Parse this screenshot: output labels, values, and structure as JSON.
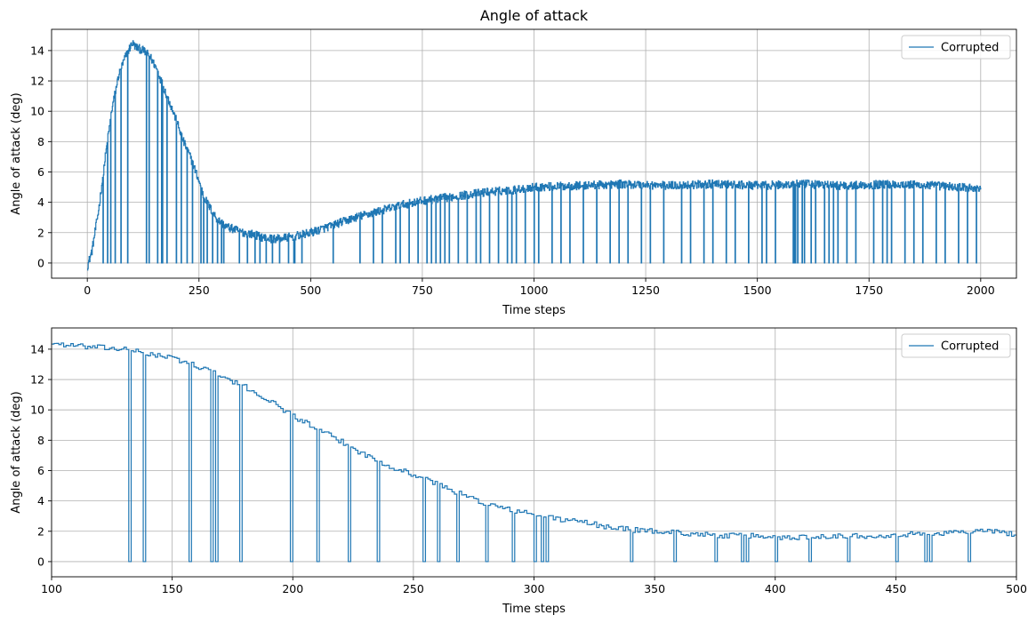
{
  "chart_data": [
    {
      "type": "line",
      "title": "Angle of attack",
      "xlabel": "Time steps",
      "ylabel": "Angle of attack (deg)",
      "xlim": [
        -80,
        2080
      ],
      "ylim": [
        -1.0,
        15.4
      ],
      "xticks": [
        0,
        250,
        500,
        750,
        1000,
        1250,
        1500,
        1750,
        2000
      ],
      "xtick_labels": [
        "0",
        "250",
        "500",
        "750",
        "1000",
        "1250",
        "1500",
        "1750",
        "2000"
      ],
      "yticks": [
        0,
        2,
        4,
        6,
        8,
        10,
        12,
        14
      ],
      "ytick_labels": [
        "0",
        "2",
        "4",
        "6",
        "8",
        "10",
        "12",
        "14"
      ],
      "grid": true,
      "legend": {
        "position": "top-right",
        "entries": [
          "Corrupted"
        ]
      },
      "line_color": "#1f77b4",
      "series": [
        {
          "name": "Corrupted",
          "x": [
            0,
            10,
            25,
            40,
            55,
            70,
            85,
            95,
            100,
            110,
            125,
            140,
            155,
            170,
            185,
            200,
            215,
            230,
            245,
            260,
            275,
            290,
            310,
            330,
            350,
            370,
            390,
            410,
            430,
            450,
            470,
            500,
            530,
            560,
            600,
            650,
            700,
            750,
            800,
            850,
            900,
            950,
            1000,
            1100,
            1200,
            1300,
            1400,
            1500,
            1600,
            1700,
            1800,
            1900,
            2000
          ],
          "y": [
            -0.2,
            0.8,
            3.5,
            7.0,
            10.2,
            12.4,
            13.6,
            14.2,
            14.5,
            14.2,
            14.0,
            13.6,
            12.8,
            11.6,
            10.5,
            9.3,
            8.0,
            7.0,
            5.8,
            4.4,
            3.6,
            2.9,
            2.4,
            2.2,
            2.0,
            1.9,
            1.7,
            1.6,
            1.6,
            1.7,
            1.8,
            2.0,
            2.3,
            2.6,
            3.0,
            3.4,
            3.8,
            4.1,
            4.3,
            4.5,
            4.7,
            4.8,
            5.0,
            5.1,
            5.2,
            5.1,
            5.2,
            5.1,
            5.2,
            5.1,
            5.2,
            5.1,
            4.9
          ],
          "dropouts_to_zero": [
            35,
            45,
            52,
            62,
            75,
            90,
            132,
            138,
            157,
            166,
            168,
            178,
            199,
            210,
            223,
            235,
            254,
            260,
            268,
            280,
            291,
            300,
            305,
            340,
            358,
            375,
            386,
            400,
            414,
            430,
            450,
            462,
            464,
            480,
            550,
            610,
            640,
            660,
            690,
            700,
            720,
            740,
            760,
            770,
            780,
            790,
            800,
            810,
            830,
            850,
            870,
            880,
            900,
            920,
            940,
            950,
            960,
            980,
            1000,
            1010,
            1040,
            1060,
            1080,
            1110,
            1140,
            1170,
            1190,
            1210,
            1240,
            1260,
            1290,
            1330,
            1350,
            1380,
            1400,
            1430,
            1450,
            1480,
            1510,
            1520,
            1540,
            1580,
            1582,
            1585,
            1590,
            1600,
            1605,
            1620,
            1630,
            1650,
            1660,
            1670,
            1680,
            1700,
            1720,
            1760,
            1780,
            1790,
            1800,
            1830,
            1850,
            1870,
            1900,
            1920,
            1950,
            1970,
            1990
          ]
        }
      ]
    },
    {
      "type": "line",
      "title": "",
      "xlabel": "Time steps",
      "ylabel": "Angle of attack (deg)",
      "xlim": [
        100,
        500
      ],
      "ylim": [
        -1.0,
        15.4
      ],
      "xticks": [
        100,
        150,
        200,
        250,
        300,
        350,
        400,
        450,
        500
      ],
      "xtick_labels": [
        "100",
        "150",
        "200",
        "250",
        "300",
        "350",
        "400",
        "450",
        "500"
      ],
      "yticks": [
        0,
        2,
        4,
        6,
        8,
        10,
        12,
        14
      ],
      "ytick_labels": [
        "0",
        "2",
        "4",
        "6",
        "8",
        "10",
        "12",
        "14"
      ],
      "grid": true,
      "legend": {
        "position": "top-right",
        "entries": [
          "Corrupted"
        ]
      },
      "line_color": "#1f77b4",
      "series": [
        {
          "name": "Corrupted",
          "x": [
            100,
            110,
            120,
            130,
            140,
            150,
            160,
            170,
            180,
            190,
            200,
            210,
            220,
            230,
            240,
            250,
            260,
            270,
            280,
            290,
            300,
            310,
            320,
            330,
            340,
            350,
            360,
            370,
            380,
            390,
            400,
            410,
            420,
            430,
            440,
            450,
            460,
            470,
            480,
            490,
            500
          ],
          "y": [
            14.4,
            14.2,
            14.1,
            14.0,
            13.7,
            13.4,
            12.9,
            12.2,
            11.5,
            10.6,
            9.6,
            8.7,
            7.9,
            7.0,
            6.3,
            5.7,
            5.1,
            4.4,
            3.8,
            3.4,
            3.1,
            2.8,
            2.6,
            2.3,
            2.1,
            2.0,
            1.9,
            1.8,
            1.7,
            1.7,
            1.6,
            1.6,
            1.7,
            1.7,
            1.7,
            1.8,
            1.8,
            1.9,
            2.0,
            2.0,
            1.8
          ],
          "dropouts_to_zero": [
            132,
            138,
            157,
            166,
            168,
            178,
            199,
            210,
            223,
            235,
            254,
            260,
            268,
            280,
            291,
            300,
            303,
            305,
            340,
            358,
            375,
            386,
            388,
            400,
            414,
            430,
            450,
            462,
            464,
            480
          ]
        }
      ]
    }
  ]
}
